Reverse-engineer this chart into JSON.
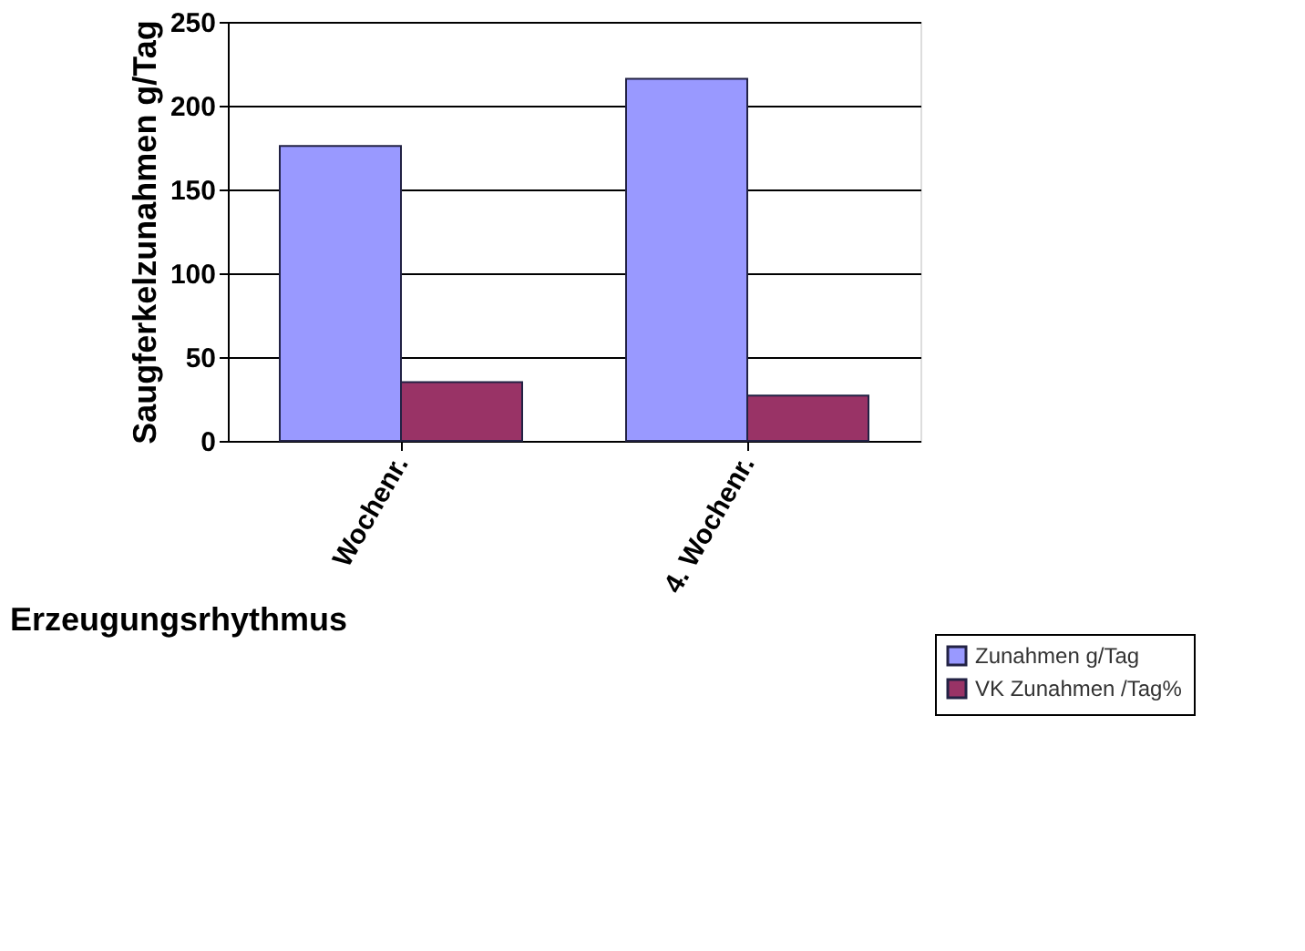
{
  "chart_data": {
    "type": "bar",
    "categories": [
      "Wochenr.",
      "4. Wochenr."
    ],
    "xlabel": "Erzeugungsrhythmus",
    "ylabel": "Saugferkelzunahmen g/Tag",
    "series": [
      {
        "name": "Zunahmen g/Tag",
        "color": "#9999ff",
        "values": [
          176,
          216
        ]
      },
      {
        "name": "VK Zunahmen /Tag%",
        "color": "#993366",
        "values": [
          35,
          27
        ]
      }
    ],
    "ylim": [
      0,
      250
    ],
    "yticks": [
      0,
      50,
      100,
      150,
      200,
      250
    ],
    "grid": "y",
    "legend": "bottom right"
  }
}
